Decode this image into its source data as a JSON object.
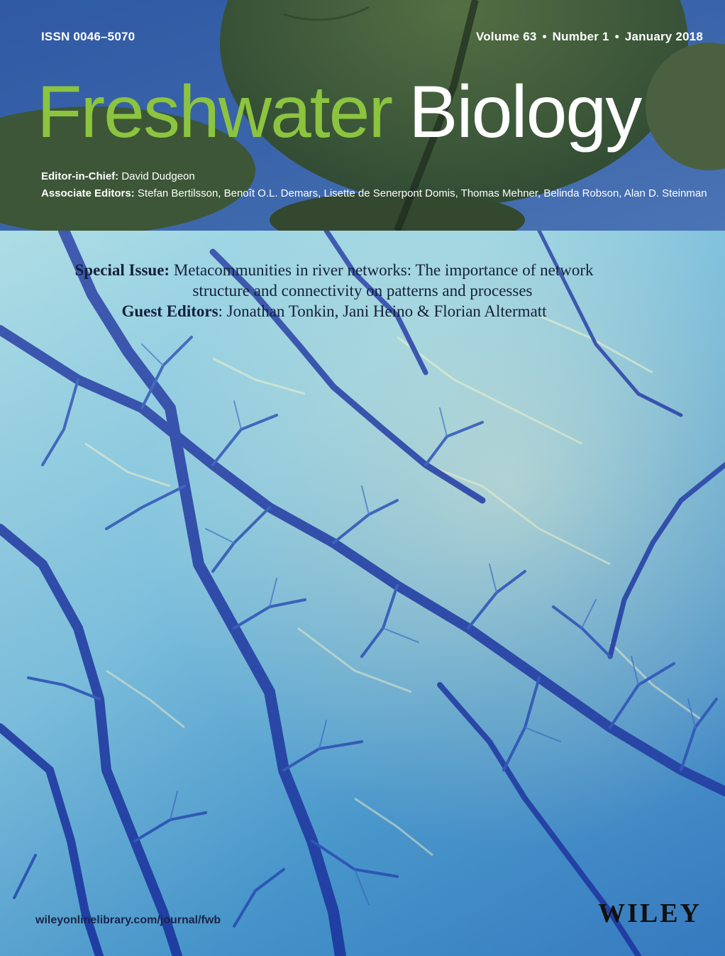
{
  "header": {
    "issn": "ISSN 0046–5070",
    "volume": "Volume 63",
    "number": "Number 1",
    "date": "January 2018",
    "separator": "•"
  },
  "title": {
    "word1": "Freshwater",
    "word2": "Biology"
  },
  "editors": {
    "chief_label": "Editor-in-Chief:",
    "chief_name": "David Dudgeon",
    "associate_label": "Associate Editors:",
    "associate_names": "Stefan Bertilsson, Benoît O.L. Demars, Lisette de Senerpont Domis, Thomas Mehner, Belinda Robson, Alan D. Steinman"
  },
  "special_issue": {
    "label": "Special Issue:",
    "title_line1": "Metacommunities in river networks: The importance of network",
    "title_line2": "structure and connectivity on patterns and processes",
    "guest_label": "Guest Editors",
    "guest_names": ": Jonathan Tonkin, Jani Heino & Florian Altermatt"
  },
  "footer": {
    "url": "wileyonlinelibrary.com/journal/fwb",
    "publisher": "WILEY"
  },
  "colors": {
    "title_green": "#8cc43f",
    "title_white": "#ffffff",
    "river_deep": "#1e3ca0",
    "river_light": "#eef3c8"
  }
}
